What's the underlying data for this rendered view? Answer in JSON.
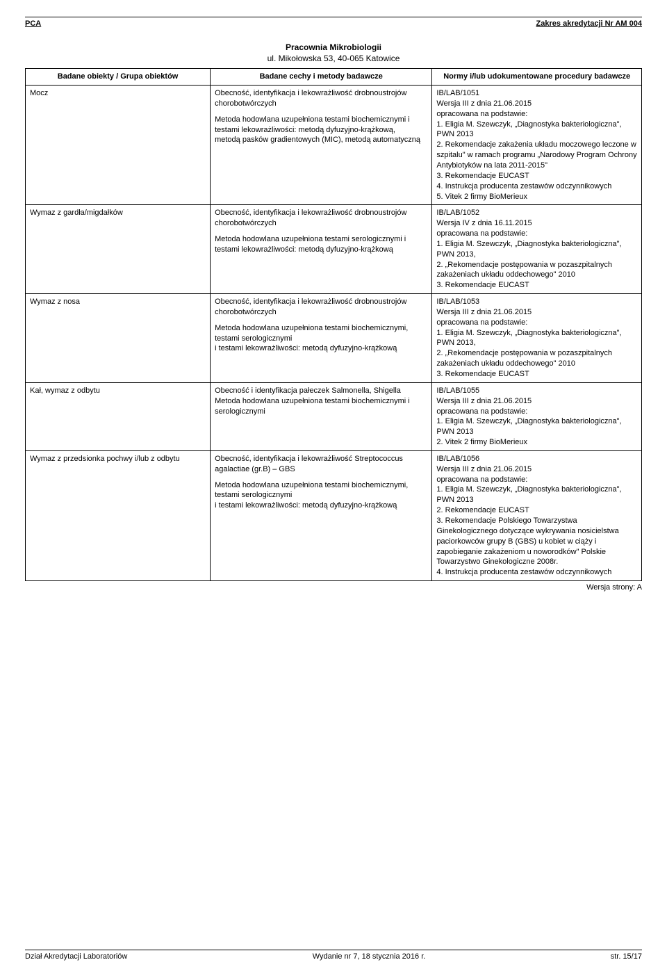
{
  "header": {
    "left": "PCA",
    "right": "Zakres akredytacji Nr AM 004"
  },
  "lab": {
    "title": "Pracownia Mikrobiologii",
    "subtitle": "ul. Mikołowska 53, 40-065 Katowice"
  },
  "table": {
    "columns": [
      "Badane obiekty / Grupa obiektów",
      "Badane cechy i metody badawcze",
      "Normy i/lub udokumentowane procedury badawcze"
    ],
    "rows": [
      {
        "obj": "Mocz",
        "method_p1": "Obecność, identyfikacja i lekowrażliwość drobnoustrojów chorobotwórczych",
        "method_p2": "Metoda hodowlana uzupełniona testami biochemicznymi i testami lekowrażliwości: metodą dyfuzyjno-krążkową,\nmetodą pasków gradientowych (MIC), metodą automatyczną",
        "norm": "IB/LAB/1051\nWersja III z dnia 21.06.2015\nopracowana na podstawie:\n1. Eligia M. Szewczyk, „Diagnostyka bakteriologiczna\", PWN 2013\n2. Rekomendacje zakażenia układu moczowego leczone w szpitalu\" w ramach programu „Narodowy Program Ochrony Antybiotyków na lata 2011-2015\"\n3. Rekomendacje EUCAST\n 4. Instrukcja producenta zestawów odczynnikowych\n5. Vitek 2 firmy BioMerieux"
      },
      {
        "obj": "Wymaz z gardła/migdałków",
        "method_p1": "Obecność, identyfikacja i lekowrażliwość drobnoustrojów chorobotwórczych",
        "method_p2": "Metoda hodowlana uzupełniona testami serologicznymi  i testami lekowrażliwości: metodą dyfuzyjno-krążkową",
        "norm": "IB/LAB/1052\nWersja IV z dnia 16.11.2015\nopracowana na podstawie:\n1. Eligia M. Szewczyk, „Diagnostyka bakteriologiczna\", PWN 2013,\n2. „Rekomendacje postępowania w pozaszpitalnych zakażeniach układu oddechowego\"  2010\n3. Rekomendacje EUCAST"
      },
      {
        "obj": "Wymaz z nosa",
        "method_p1": "Obecność, identyfikacja i lekowrażliwość drobnoustrojów chorobotwórczych",
        "method_p2": "Metoda hodowlana uzupełniona testami biochemicznymi, testami serologicznymi\ni testami lekowrażliwości: metodą dyfuzyjno-krążkową",
        "norm": "IB/LAB/1053\nWersja III z dnia 21.06.2015\nopracowana na podstawie:\n1. Eligia M. Szewczyk, „Diagnostyka bakteriologiczna\", PWN 2013,\n2. „Rekomendacje postępowania w pozaszpitalnych zakażeniach układu oddechowego\"  2010\n3. Rekomendacje EUCAST"
      },
      {
        "obj": "Kał, wymaz z odbytu",
        "method_p1": "Obecność i identyfikacja pałeczek Salmonella, Shigella\nMetoda hodowlana uzupełniona testami biochemicznymi i serologicznymi",
        "method_p2": "",
        "norm": "IB/LAB/1055\nWersja III z dnia 21.06.2015\nopracowana na podstawie:\n1. Eligia M. Szewczyk, „Diagnostyka bakteriologiczna\", PWN 2013\n2. Vitek 2 firmy BioMerieux"
      },
      {
        "obj": "Wymaz z przedsionka pochwy i/lub z odbytu",
        "method_p1": "Obecność, identyfikacja i lekowrażliwość Streptococcus agalactiae (gr.B) – GBS",
        "method_p2": "Metoda hodowlana uzupełniona testami biochemicznymi, testami serologicznymi\ni testami lekowrażliwości: metodą dyfuzyjno-krążkową",
        "norm": "IB/LAB/1056\nWersja III z dnia 21.06.2015\nopracowana na podstawie:\n1. Eligia M. Szewczyk, „Diagnostyka bakteriologiczna\", PWN 2013\n2. Rekomendacje EUCAST\n3. Rekomendacje Polskiego Towarzystwa Ginekologicznego dotyczące wykrywania nosicielstwa paciorkowców grupy B (GBS) u kobiet w ciąży i zapobieganie zakażeniom u noworodków\" Polskie Towarzystwo Ginekologiczne 2008r.\n4. Instrukcja producenta zestawów odczynnikowych"
      }
    ]
  },
  "version_line": "Wersja strony: A",
  "footer": {
    "left": "Dział Akredytacji Laboratoriów",
    "center": "Wydanie nr 7, 18 stycznia 2016 r.",
    "right": "str. 15/17"
  }
}
